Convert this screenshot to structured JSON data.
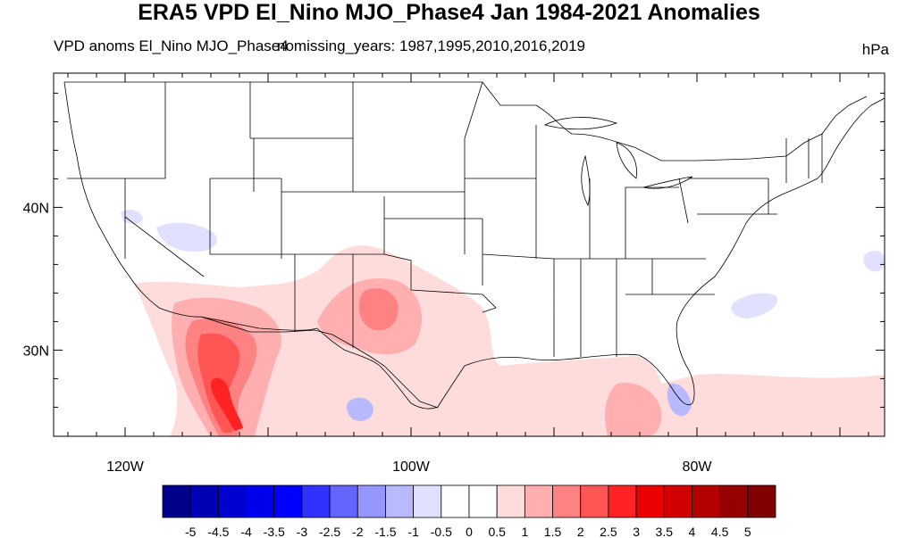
{
  "header": {
    "title": "ERA5 VPD El_Nino MJO_Phase4 Jan 1984-2021 Anomalies",
    "subtitle_left": "VPD anoms El_Nino MJO_Phase4",
    "subtitle_center": "nomissing_years: 1987,1995,2010,2016,2019",
    "units": "hPa"
  },
  "map": {
    "projection": "cylindrical-equidistant",
    "region": "Contiguous United States",
    "lat_ticks": [
      {
        "value": 30,
        "label": "30N"
      },
      {
        "value": 40,
        "label": "40N"
      }
    ],
    "lon_ticks": [
      {
        "value": -120,
        "label": "120W"
      },
      {
        "value": -100,
        "label": "100W"
      },
      {
        "value": -80,
        "label": "80W"
      }
    ]
  },
  "legend": {
    "labels": [
      "-5",
      "-4.5",
      "-4",
      "-3.5",
      "-3",
      "-2.5",
      "-2",
      "-1.5",
      "-1",
      "-0.5",
      "0",
      "0.5",
      "1",
      "1.5",
      "2",
      "2.5",
      "3",
      "3.5",
      "4",
      "4.5",
      "5"
    ],
    "colors": [
      "#00008b",
      "#0000b4",
      "#0000d2",
      "#0000eb",
      "#0000ff",
      "#3232ff",
      "#6464ff",
      "#9696ff",
      "#b9b9ff",
      "#e1e1ff",
      "#ffffff",
      "#ffffff",
      "#ffdcdc",
      "#ffafaf",
      "#ff8282",
      "#ff5555",
      "#ff2323",
      "#eb0000",
      "#d20000",
      "#b40000",
      "#960000",
      "#800000"
    ]
  }
}
